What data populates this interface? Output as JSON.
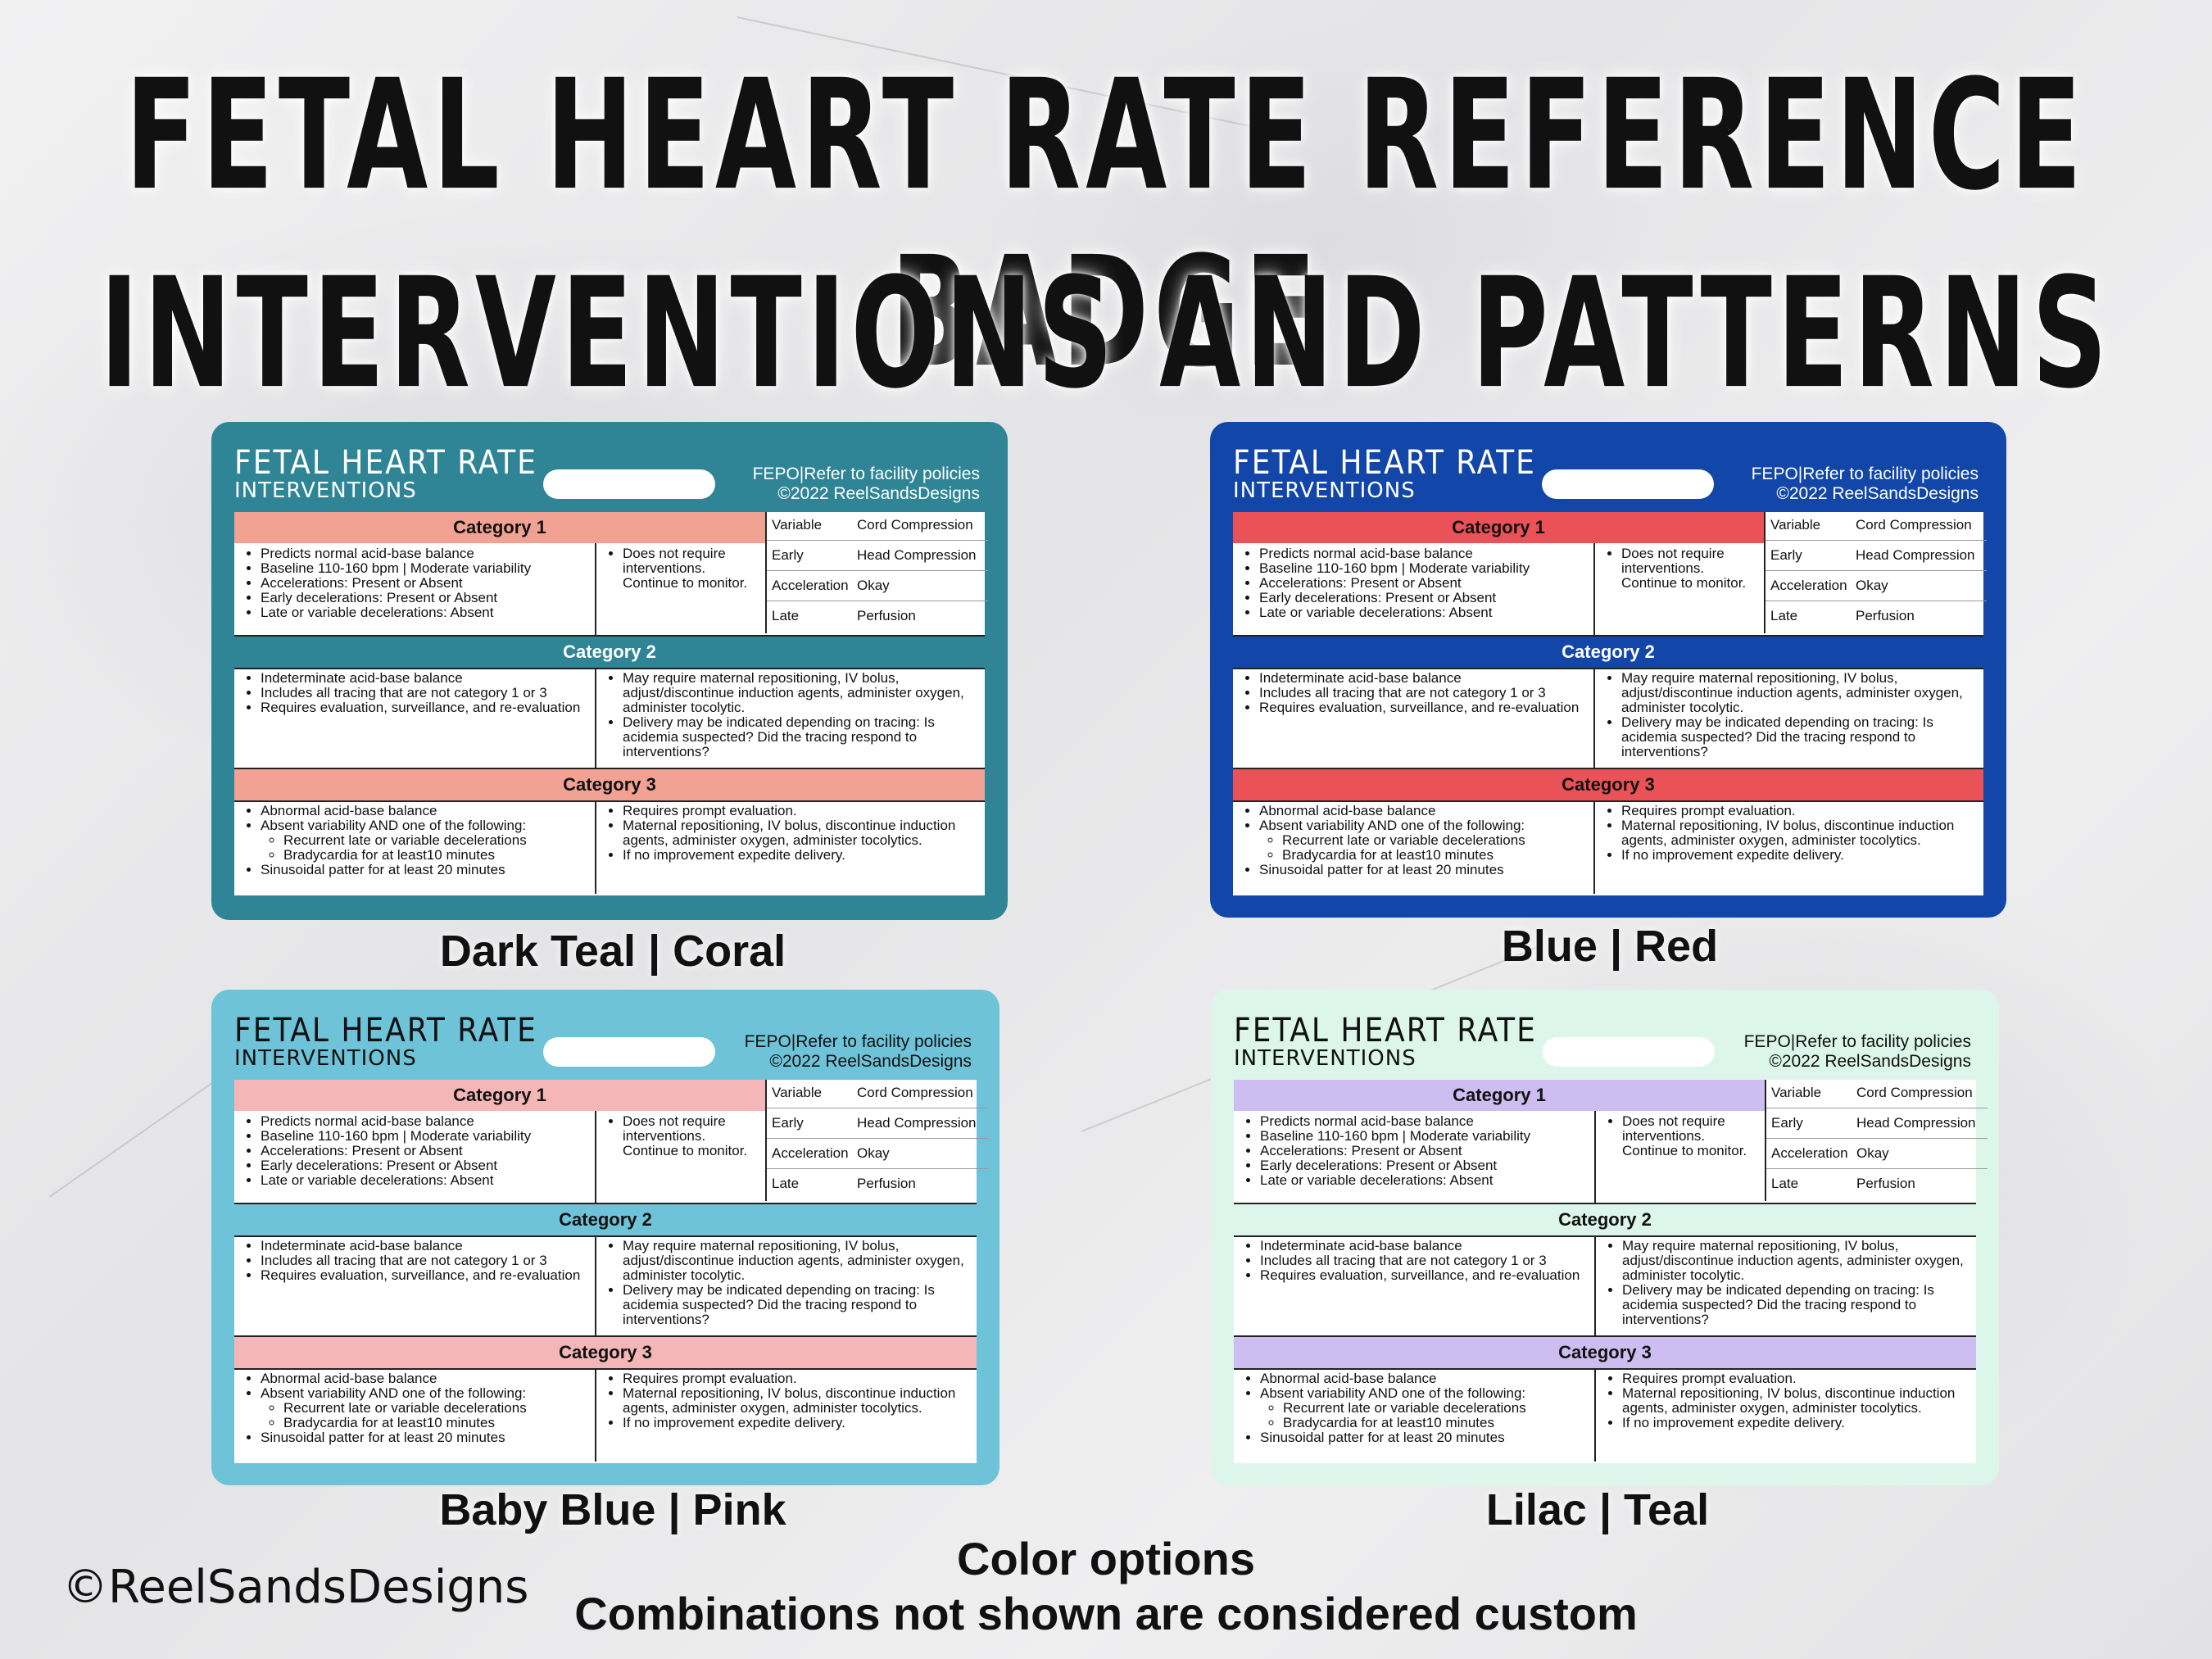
{
  "header": {
    "line1": "FETAL HEART RATE REFERENCE BADGE",
    "line2": "INTERVENTIONS AND PATTERNS"
  },
  "badge_common": {
    "title": "FETAL HEART RATE",
    "subtitle": "INTERVENTIONS",
    "fepo": "FEPO|Refer to facility policies",
    "copyright": "©2022 ReelSandsDesigns",
    "cat1": "Category 1",
    "cat2": "Category 2",
    "cat3": "Category 3",
    "c1_left": [
      "Predicts normal acid-base balance",
      "Baseline 110-160 bpm | Moderate variability",
      "Accelerations: Present or Absent",
      "Early decelerations: Present or Absent",
      "Late or variable decelerations: Absent"
    ],
    "c1_right": [
      "Does not require interventions. Continue to monitor."
    ],
    "c2_left": [
      "Indeterminate acid-base balance",
      "Includes all tracing that are not category 1 or 3",
      "Requires evaluation, surveillance, and re-evaluation"
    ],
    "c2_right": [
      "May require maternal repositioning, IV bolus, adjust/discontinue induction agents, administer oxygen, administer tocolytic.",
      "Delivery may be indicated depending on tracing: Is acidemia suspected? Did the tracing respond to interventions?"
    ],
    "c3_left": [
      "Abnormal acid-base balance",
      "Absent variability AND one of the following:",
      "Sinusoidal patter for at least 20 minutes"
    ],
    "c3_left_sub": [
      "Recurrent late or variable decelerations",
      "Bradycardia for at least10 minutes"
    ],
    "c3_right": [
      "Requires prompt evaluation.",
      "Maternal repositioning, IV bolus, discontinue induction agents, administer oxygen, administer tocolytics.",
      "If no improvement expedite delivery."
    ],
    "table": [
      [
        "Variable",
        "Cord Compression"
      ],
      [
        "Early",
        "Head Compression"
      ],
      [
        "Acceleration",
        "Okay"
      ],
      [
        "Late",
        "Perfusion"
      ]
    ]
  },
  "badges": [
    {
      "name": "Dark Teal | Coral",
      "bg": "#2f8596",
      "band1": "#f2a292",
      "band2": "#2f8596",
      "band3": "#f2a292",
      "headText": "#ffffff"
    },
    {
      "name": "Blue | Red",
      "bg": "#1246a8",
      "band1": "#ea5257",
      "band2": "#1246a8",
      "band3": "#ea5257",
      "headText": "#ffffff"
    },
    {
      "name": "Baby Blue | Pink",
      "bg": "#6fc3d8",
      "band1": "#f4b6b6",
      "band2": "#6fc3d8",
      "band3": "#f4b6b6",
      "headText": "#111111"
    },
    {
      "name": "Lilac | Teal",
      "bg": "#dcf6ec",
      "band1": "#cdbdf0",
      "band2": "#dcf6ec",
      "band3": "#cdbdf0",
      "headText": "#111111"
    }
  ],
  "footer": {
    "brand": "©ReelSandsDesigns",
    "line1": "Color options",
    "line2": "Combinations not shown are considered custom"
  }
}
